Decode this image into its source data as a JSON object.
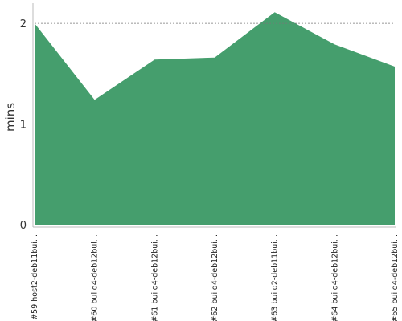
{
  "chart_data": {
    "type": "area",
    "title": "",
    "xlabel": "",
    "ylabel": "mins",
    "categories": [
      "#59 host2-deb11bui...",
      "#60 build4-deb12bui...",
      "#61 build4-deb12bui...",
      "#62 build4-deb12bui...",
      "#63 build2-deb11bui...",
      "#64 build4-deb12bui...",
      "#65 build4-deb12bui..."
    ],
    "series": [
      {
        "values": [
          2.0,
          1.24,
          1.64,
          1.66,
          2.11,
          1.79,
          1.57
        ]
      }
    ],
    "ylim": [
      0,
      2.2
    ],
    "yticks": [
      0,
      1,
      2
    ],
    "grid": true,
    "legend": "none",
    "colors": {
      "fill": "#459e6d",
      "grid": "#777777",
      "axis": "#bbbbbb"
    }
  }
}
